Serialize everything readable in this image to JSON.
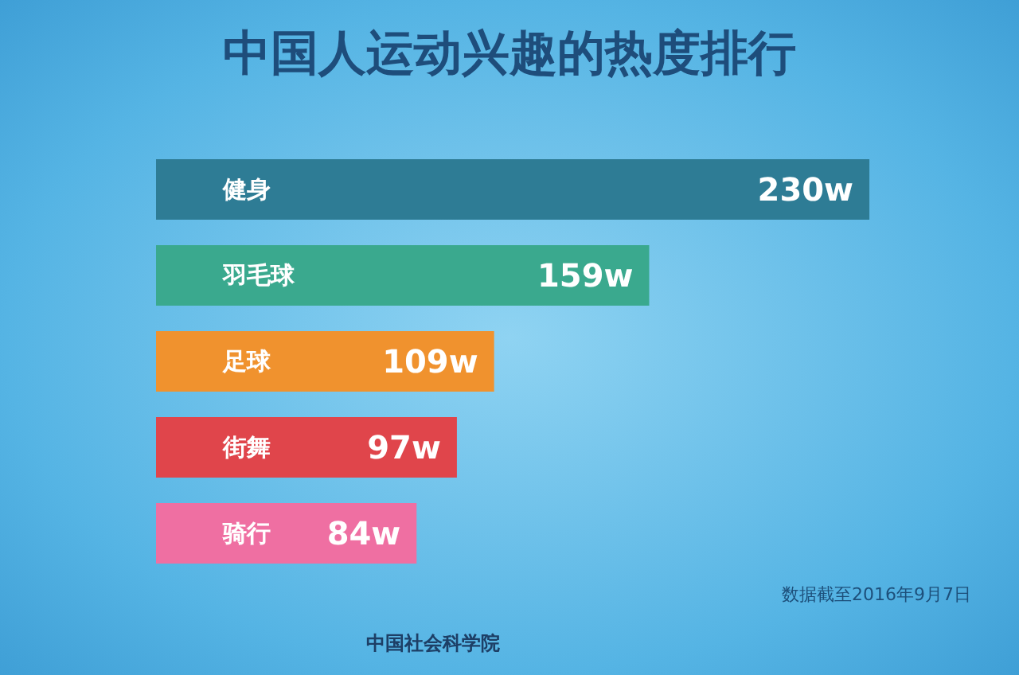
{
  "chart_data": {
    "type": "bar",
    "orientation": "horizontal",
    "title": "中国人运动兴趣的热度排行",
    "categories": [
      "健身",
      "羽毛球",
      "足球",
      "街舞",
      "骑行"
    ],
    "values": [
      230,
      159,
      109,
      97,
      84
    ],
    "value_labels": [
      "230w",
      "159w",
      "109w",
      "97w",
      "84w"
    ],
    "colors": [
      "#2e7c95",
      "#3aa98e",
      "#f0922e",
      "#e0454b",
      "#ef6fa2"
    ],
    "annotations": [
      "数据截至2016年9月7日",
      "中国社会科学院"
    ]
  }
}
